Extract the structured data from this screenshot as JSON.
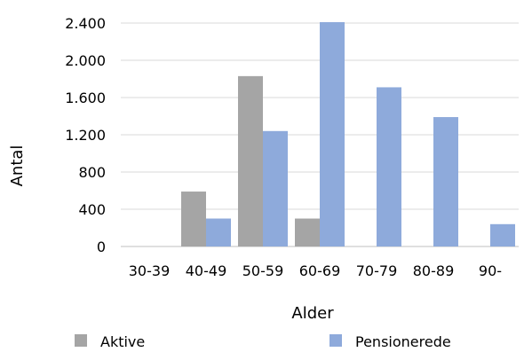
{
  "chart_data": {
    "type": "bar",
    "categories": [
      "30-39",
      "40-49",
      "50-59",
      "60-69",
      "70-79",
      "80-89",
      "90-"
    ],
    "series": [
      {
        "name": "Aktive",
        "color": "#a5a5a5",
        "values": [
          0,
          590,
          1830,
          300,
          0,
          0,
          0
        ]
      },
      {
        "name": "Pensionerede",
        "color": "#8eaadb",
        "values": [
          0,
          300,
          1240,
          2410,
          1710,
          1390,
          240
        ]
      }
    ],
    "yticks": [
      0,
      400,
      800,
      1200,
      1600,
      2000,
      2400
    ],
    "ytick_labels": [
      "0",
      "400",
      "800",
      "1.200",
      "1.600",
      "2.000",
      "2.400"
    ],
    "ylim": [
      0,
      2400
    ],
    "xlabel": "Alder",
    "ylabel": "Antal",
    "title": "",
    "grid": true,
    "legend": "bottom"
  }
}
